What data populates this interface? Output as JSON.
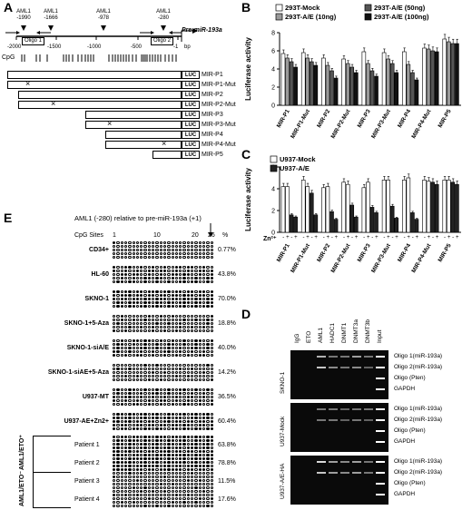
{
  "panels": {
    "a": "A",
    "b": "B",
    "c": "C",
    "d": "D",
    "e": "E"
  },
  "panelA": {
    "aml1_sites": [
      "AML1\n-1990",
      "AML1\n-1666",
      "AML1\n-978",
      "AML1\n-280"
    ],
    "aml1_names": [
      "AML1",
      "AML1",
      "AML1",
      "AML1"
    ],
    "aml1_pos": [
      "-1990",
      "-1666",
      "-978",
      "-280"
    ],
    "pre_mir": "Pre-miR-193a",
    "oligo1": "Oligo 1",
    "oligo2": "Oligo 2",
    "ticks": [
      "-2000",
      "-1500",
      "-1000",
      "-500",
      "-1",
      "bp"
    ],
    "cpg_label": "CpG",
    "luc": "LUC",
    "constructs": [
      "MIR-P1",
      "MIR-P1-Mut",
      "MIR-P2",
      "MIR-P2-Mut",
      "MIR-P3",
      "MIR-P3-Mut",
      "MIR-P4",
      "MIR-P4-Mut",
      "MIR-P5"
    ]
  },
  "panelB": {
    "chart_data": {
      "type": "bar",
      "ylabel": "Luciferase activity",
      "ylim": [
        0,
        8
      ],
      "yticks": [
        "0",
        "2",
        "4",
        "6",
        "8"
      ],
      "categories": [
        "MIR-P1",
        "MIR-P1-Mut",
        "MIR-P2",
        "MIR-P2-Mut",
        "MIR-P3",
        "MIR-P3-Mut",
        "MIR-P4",
        "MIR-P4-Mut",
        "MIR-P5"
      ],
      "series": [
        {
          "name": "293T-Mock",
          "color": "#ffffff",
          "values": [
            5.7,
            5.8,
            5.2,
            5.1,
            5.9,
            5.8,
            5.9,
            6.3,
            7.3
          ]
        },
        {
          "name": "293T-A/E (10ng)",
          "color": "#9a9a9a",
          "values": [
            5.2,
            5.2,
            4.4,
            4.6,
            4.6,
            5.1,
            4.5,
            6.2,
            7.0
          ]
        },
        {
          "name": "293T-A/E (50ng)",
          "color": "#555555",
          "values": [
            4.8,
            4.8,
            3.8,
            4.2,
            3.8,
            4.6,
            3.6,
            6.0,
            6.8
          ]
        },
        {
          "name": "293T-A/E (100ng)",
          "color": "#111111",
          "values": [
            4.2,
            4.4,
            3.0,
            3.6,
            3.2,
            3.6,
            2.8,
            5.9,
            6.8
          ]
        }
      ],
      "legend_placement": "top"
    }
  },
  "panelC": {
    "chart_data": {
      "type": "bar",
      "ylabel": "Luciferase activity",
      "ylim": [
        0,
        6
      ],
      "yticks": [
        "0",
        "2",
        "4",
        "6"
      ],
      "xlabel_prefix": "Zn²⁺",
      "zn_signs": [
        "-",
        "+",
        "-",
        "+"
      ],
      "categories": [
        "MIR-P1",
        "MIR-P1-Mut",
        "MIR-P2",
        "MIR-P2-Mut",
        "MIR-P3",
        "MIR-P3-Mut",
        "MIR-P4",
        "MIR-P4-Mut",
        "MIR-P5"
      ],
      "series": [
        {
          "name": "U937-Mock",
          "color": "#ffffff",
          "values": [
            4.2,
            4.8,
            4.1,
            4.6,
            4.1,
            4.8,
            4.8,
            4.8,
            4.8
          ]
        },
        {
          "name": "U937-Mock +Zn",
          "color": "#ffffff",
          "values": [
            4.2,
            4.2,
            4.2,
            4.4,
            4.6,
            4.8,
            5.0,
            4.7,
            4.8
          ]
        },
        {
          "name": "U937-A/E",
          "color": "#222222",
          "values": [
            1.6,
            3.6,
            1.9,
            2.5,
            2.3,
            2.4,
            1.8,
            4.6,
            4.6
          ]
        },
        {
          "name": "U937-A/E +Zn",
          "color": "#222222",
          "values": [
            1.4,
            1.6,
            1.2,
            1.4,
            1.8,
            1.3,
            1.2,
            4.4,
            4.4
          ]
        }
      ],
      "legend": [
        "U937-Mock",
        "U937-A/E"
      ],
      "legend_placement": "top-left"
    }
  },
  "panelD": {
    "lanes": [
      "IgG",
      "ETO",
      "AML1",
      "HADC1",
      "DNMT1",
      "DNMT3a",
      "DNMT3b",
      "Input"
    ],
    "groups": [
      {
        "cell": "SKNO-1",
        "rows": [
          "Oligo 1(miR-193a)",
          "Oligo 2(miR-193a)",
          "Oligo (Pten)",
          "GAPDH"
        ]
      },
      {
        "cell": "U937-Mock",
        "rows": [
          "Oligo 1(miR-193a)",
          "Oligo 2(miR-193a)",
          "Oligo (Pten)",
          "GAPDH"
        ]
      },
      {
        "cell": "U937-A/E-HA",
        "rows": [
          "Oligo 1(miR-193a)",
          "Oligo 2(miR-193a)",
          "Oligo (Pten)",
          "GAPDH"
        ]
      }
    ]
  },
  "panelE": {
    "header": "AML1 (-280) relative to pre-miR-193a (+1)",
    "cpg_sites": "CpG Sites",
    "cpg_ticks": [
      "1",
      "10",
      "20",
      "26"
    ],
    "pct_header": "%",
    "samples": [
      {
        "name": "CD34+",
        "pct": "0.77%",
        "methyl": 0.02
      },
      {
        "name": "HL-60",
        "pct": "43.8%",
        "methyl": 0.44
      },
      {
        "name": "SKNO-1",
        "pct": "70.0%",
        "methyl": 0.7
      },
      {
        "name": "SKNO-1+5-Aza",
        "pct": "18.8%",
        "methyl": 0.19
      },
      {
        "name": "SKNO-1-siA/E",
        "pct": "40.0%",
        "methyl": 0.4
      },
      {
        "name": "SKNO-1-siAE+5-Aza",
        "pct": "14.2%",
        "methyl": 0.14
      },
      {
        "name": "U937-MT",
        "pct": "36.5%",
        "methyl": 0.365
      },
      {
        "name": "U937-AE+Zn2+",
        "pct": "60.4%",
        "methyl": 0.6
      }
    ],
    "patients_pos_label": "AML1/ETO⁺",
    "patients_neg_label": "AML1/ETO⁻",
    "patients": [
      {
        "name": "Patient 1",
        "pct": "63.8%",
        "methyl": 0.64
      },
      {
        "name": "Patient 2",
        "pct": "78.8%",
        "methyl": 0.79
      },
      {
        "name": "Patient 3",
        "pct": "11.5%",
        "methyl": 0.115
      },
      {
        "name": "Patient 4",
        "pct": "17.6%",
        "methyl": 0.18
      }
    ]
  }
}
